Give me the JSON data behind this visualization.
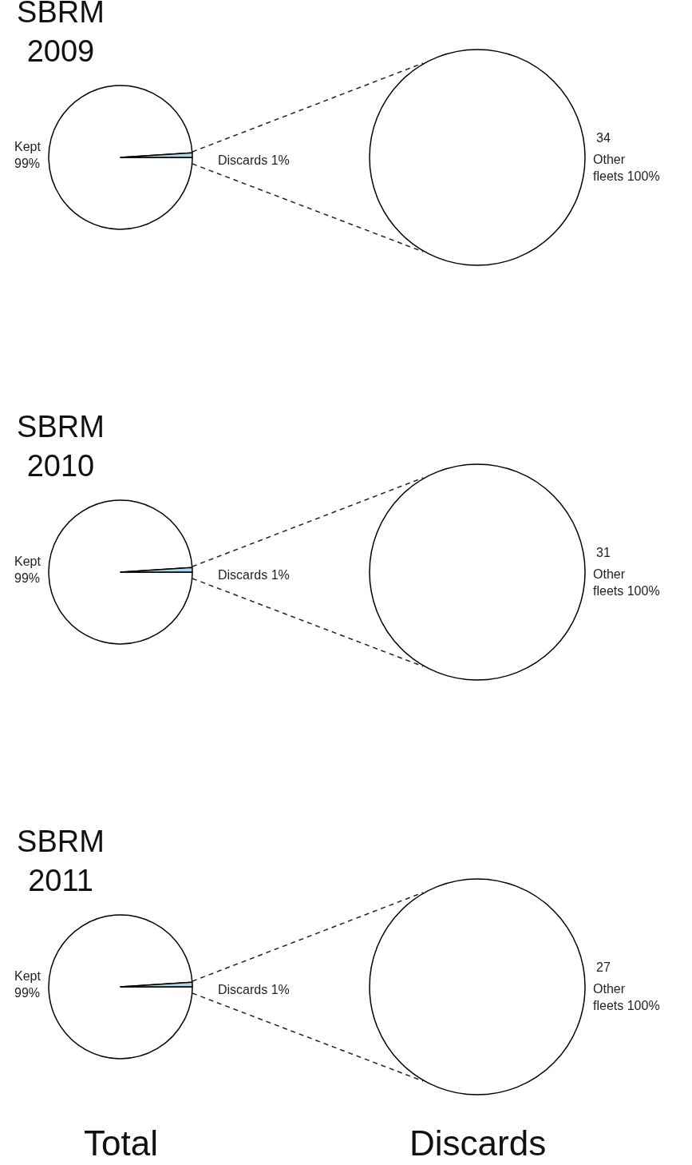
{
  "chart_data": [
    {
      "type": "pie",
      "title": "SBRM\n2009",
      "categories": [
        "Kept",
        "Discards"
      ],
      "values": [
        99,
        1
      ],
      "colors": [
        "#ffffff",
        "#add8e6"
      ],
      "value_labels": [
        "99%",
        "1%"
      ]
    },
    {
      "type": "pie",
      "categories": [
        "Other fleets"
      ],
      "values": [
        100
      ],
      "colors": [
        "#ffffff"
      ],
      "value_labels": [
        "100%"
      ],
      "annotations": [
        "34"
      ]
    },
    {
      "type": "pie",
      "title": "SBRM\n2010",
      "categories": [
        "Kept",
        "Discards"
      ],
      "values": [
        99,
        1
      ],
      "colors": [
        "#ffffff",
        "#add8e6"
      ],
      "value_labels": [
        "99%",
        "1%"
      ]
    },
    {
      "type": "pie",
      "categories": [
        "Other fleets"
      ],
      "values": [
        100
      ],
      "colors": [
        "#ffffff"
      ],
      "value_labels": [
        "100%"
      ],
      "annotations": [
        "31"
      ]
    },
    {
      "type": "pie",
      "title": "SBRM\n2011",
      "categories": [
        "Kept",
        "Discards"
      ],
      "values": [
        99,
        1
      ],
      "colors": [
        "#ffffff",
        "#add8e6"
      ],
      "value_labels": [
        "99%",
        "1%"
      ],
      "annotations": [
        "Total"
      ]
    },
    {
      "type": "pie",
      "categories": [
        "Other fleets"
      ],
      "values": [
        100
      ],
      "colors": [
        "#ffffff"
      ],
      "value_labels": [
        "100%"
      ],
      "annotations": [
        "27",
        "Discards"
      ]
    }
  ]
}
